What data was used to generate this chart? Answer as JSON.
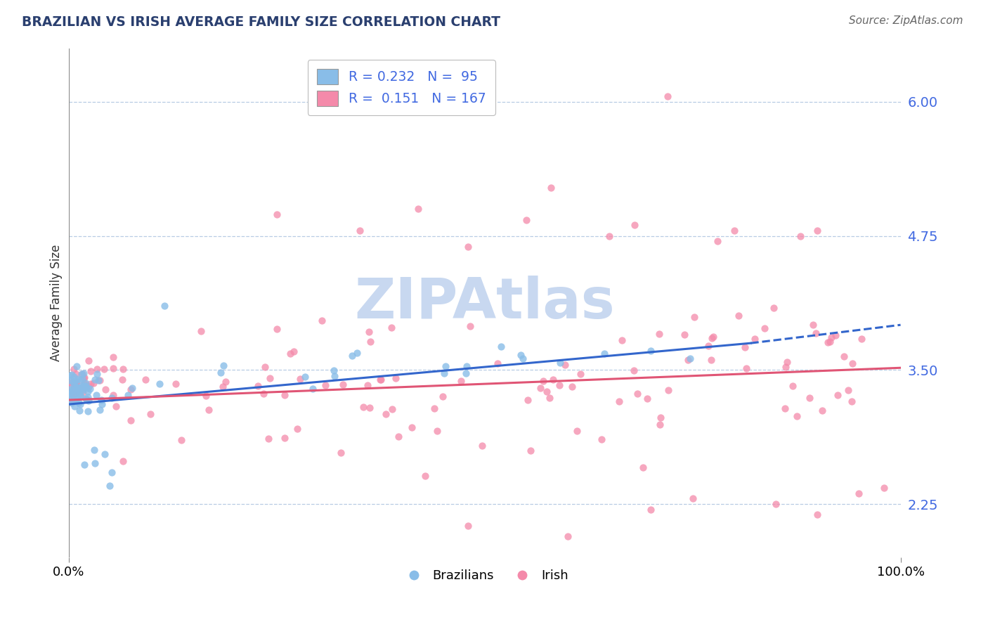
{
  "title": "BRAZILIAN VS IRISH AVERAGE FAMILY SIZE CORRELATION CHART",
  "source_text": "Source: ZipAtlas.com",
  "ylabel": "Average Family Size",
  "yticks": [
    2.25,
    3.5,
    4.75,
    6.0
  ],
  "ytick_color": "#4169e1",
  "xmin": 0.0,
  "xmax": 1.0,
  "ymin": 1.75,
  "ymax": 6.5,
  "legend_R_brazil": "0.232",
  "legend_N_brazil": "95",
  "legend_R_irish": "0.151",
  "legend_N_irish": "167",
  "brazil_color": "#89bde8",
  "irish_color": "#f48aaa",
  "brazil_line_color": "#3366cc",
  "irish_line_color": "#e05575",
  "watermark": "ZIPAtlas",
  "watermark_color": "#c8d8f0",
  "title_color": "#2a3f6f",
  "source_color": "#666666"
}
